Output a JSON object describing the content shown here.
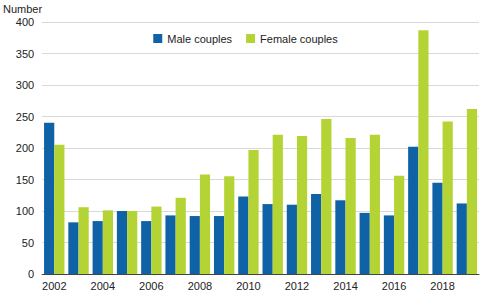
{
  "chart_data": {
    "type": "bar",
    "ylabel": "Number",
    "categories": [
      "2002",
      null,
      "2004",
      null,
      "2006",
      null,
      "2008",
      null,
      "2010",
      null,
      "2012",
      null,
      "2014",
      null,
      "2016",
      null,
      "2018",
      null
    ],
    "series": [
      {
        "name": "Male couples",
        "color": "#0f62a5",
        "values": [
          240,
          82,
          84,
          100,
          84,
          93,
          92,
          92,
          123,
          111,
          110,
          127,
          117,
          97,
          93,
          202,
          145,
          112
        ]
      },
      {
        "name": "Female couples",
        "color": "#b4d334",
        "values": [
          205,
          106,
          101,
          100,
          107,
          121,
          158,
          155,
          197,
          221,
          219,
          246,
          216,
          221,
          156,
          387,
          242,
          262
        ]
      }
    ],
    "ylim": [
      0,
      400
    ],
    "yticks": [
      0,
      50,
      100,
      150,
      200,
      250,
      300,
      350,
      400
    ],
    "grid": true,
    "legend": "top"
  }
}
